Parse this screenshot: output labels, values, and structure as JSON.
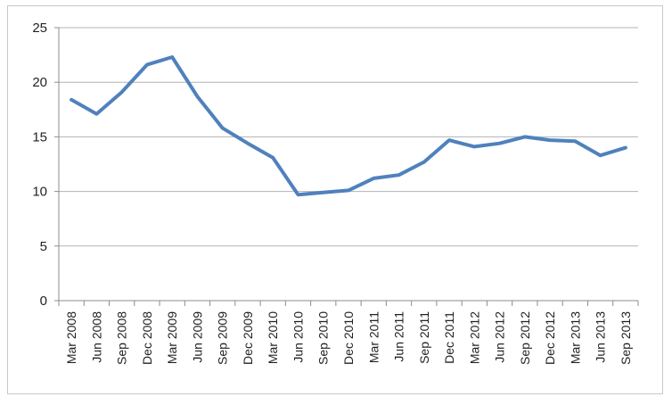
{
  "chart_data": {
    "type": "line",
    "title": "",
    "xlabel": "",
    "ylabel": "",
    "ylim": [
      0,
      25
    ],
    "yticks": [
      0,
      5,
      10,
      15,
      20,
      25
    ],
    "grid": true,
    "legend": "none",
    "categories": [
      "Mar 2008",
      "Jun 2008",
      "Sep 2008",
      "Dec 2008",
      "Mar 2009",
      "Jun 2009",
      "Sep 2009",
      "Dec 2009",
      "Mar 2010",
      "Jun 2010",
      "Sep 2010",
      "Dec 2010",
      "Mar 2011",
      "Jun 2011",
      "Sep 2011",
      "Dec 2011",
      "Mar 2012",
      "Jun 2012",
      "Sep 2012",
      "Dec 2012",
      "Mar 2013",
      "Jun 2013",
      "Sep 2013"
    ],
    "series": [
      {
        "values": [
          18.4,
          17.1,
          19.1,
          21.6,
          22.3,
          18.7,
          15.8,
          14.4,
          13.1,
          9.7,
          9.9,
          10.1,
          11.2,
          11.5,
          12.7,
          14.7,
          14.1,
          14.4,
          15.0,
          14.7,
          14.6,
          13.3,
          14.0
        ]
      }
    ],
    "colors": {
      "line": "#4f81bd",
      "grid": "#b3b3b3",
      "axis": "#8c8c8c"
    }
  }
}
